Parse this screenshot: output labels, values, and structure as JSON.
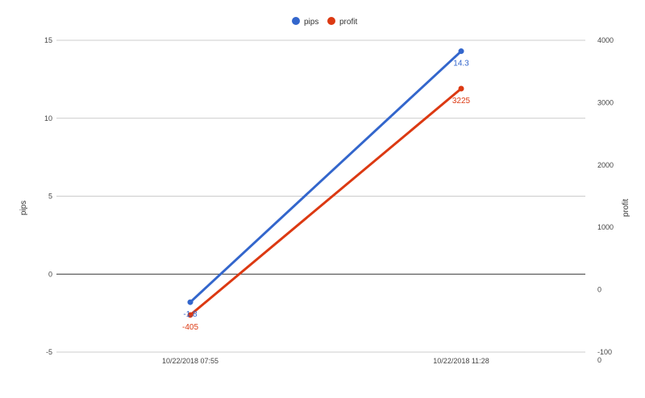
{
  "chart_data": {
    "type": "line",
    "categories": [
      "10/22/2018 07:55",
      "10/22/2018 11:28"
    ],
    "series": [
      {
        "name": "pips",
        "axis": "left",
        "color": "#3366cc",
        "values": [
          -1.8,
          14.3
        ],
        "labels": [
          "-1.8",
          "14.3"
        ]
      },
      {
        "name": "profit",
        "axis": "right",
        "color": "#dc3912",
        "values": [
          -405,
          3225
        ],
        "labels": [
          "-405",
          "3225"
        ]
      }
    ],
    "left_axis": {
      "label": "pips",
      "ylim": [
        -5,
        15
      ],
      "ticks": [
        -5,
        0,
        5,
        10,
        15
      ],
      "tick_labels": [
        "-5",
        "0",
        "5",
        "10",
        "15"
      ]
    },
    "right_axis": {
      "label": "profit",
      "ylim": [
        -1000,
        4000
      ],
      "ticks": [
        -1000,
        0,
        1000,
        2000,
        3000,
        4000
      ],
      "tick_labels": [
        "-100\n0",
        "0",
        "1000",
        "2000",
        "3000",
        "4000"
      ]
    },
    "legend": {
      "position": "top",
      "items": [
        "pips",
        "profit"
      ]
    },
    "grid": true,
    "baseline_color": "#333333",
    "grid_color": "#cccccc"
  }
}
